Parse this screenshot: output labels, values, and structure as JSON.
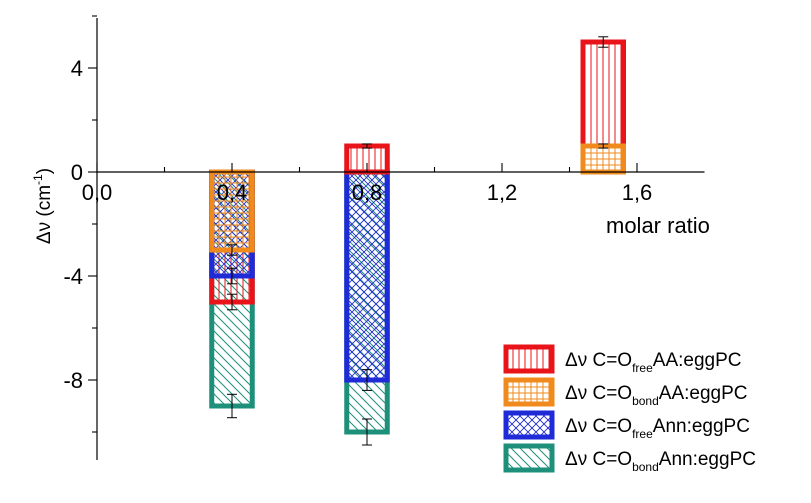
{
  "chart_data": {
    "type": "bar",
    "title": "",
    "xlabel": "molar ratio",
    "ylabel": {
      "base": "Δν (cm",
      "sup": "-1",
      "tail": ")"
    },
    "xlim": [
      0.0,
      1.8
    ],
    "ylim": [
      -11,
      6
    ],
    "x_ticks": [
      {
        "value": 0.0,
        "label": "0,0"
      },
      {
        "value": 0.4,
        "label": "0,4"
      },
      {
        "value": 0.8,
        "label": "0,8"
      },
      {
        "value": 1.2,
        "label": "1,2"
      },
      {
        "value": 1.6,
        "label": "1,6"
      }
    ],
    "y_ticks": [
      {
        "value": 4,
        "label": "4"
      },
      {
        "value": 0,
        "label": "0"
      },
      {
        "value": -4,
        "label": "-4"
      },
      {
        "value": -8,
        "label": "-8"
      }
    ],
    "bar_width": 0.12,
    "legend_position": "bottom-right",
    "series": [
      {
        "name": {
          "prefix": "Δν C=O",
          "sub": "free",
          "suffix": "AA:eggPC"
        },
        "color": "#e8141a",
        "pattern": "vertical",
        "points": [
          {
            "x": 0.4,
            "y": -5.0,
            "err": 0.3
          },
          {
            "x": 1.5,
            "y": 5.0,
            "err": 0.2
          }
        ]
      },
      {
        "name": {
          "prefix": "Δν C=O",
          "sub": "bond",
          "suffix": "AA:eggPC"
        },
        "color": "#f08a1c",
        "pattern": "grid",
        "points": [
          {
            "x": 0.4,
            "y": -3.0,
            "err": 0.2
          },
          {
            "x": 1.5,
            "y": 1.0,
            "err": 0.08
          }
        ]
      },
      {
        "name": {
          "prefix": "Δν C=O",
          "sub": "free",
          "suffix": "Ann:eggPC"
        },
        "color": "#1f2bd6",
        "pattern": "crosshatch",
        "points": [
          {
            "x": 0.4,
            "y": -4.0,
            "err": 0.3
          },
          {
            "x": 0.8,
            "y": -8.0,
            "err": 0.4
          }
        ]
      },
      {
        "name": {
          "prefix": "Δν C=O",
          "sub": "bond",
          "suffix": "Ann:eggPC"
        },
        "color": "#1e8f7a",
        "pattern": "diagonal",
        "points": [
          {
            "x": 0.4,
            "y": -9.0,
            "err": 0.45
          },
          {
            "x": 0.8,
            "y": -10.0,
            "err": 0.5
          }
        ]
      },
      {
        "name": {
          "prefix": "",
          "sub": "",
          "suffix": ""
        },
        "color": "#e8141a",
        "pattern": "vertical",
        "legend": false,
        "points": [
          {
            "x": 0.8,
            "y": 1.0,
            "err": 0.08
          }
        ]
      }
    ]
  }
}
